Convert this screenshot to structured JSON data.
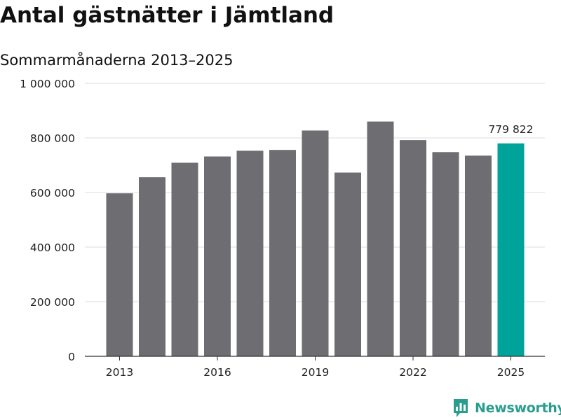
{
  "title": "Antal gästnätter i Jämtland",
  "subtitle": "Sommarmånaderna 2013–2025",
  "brand": {
    "name": "Newsworthy",
    "icon": "newsworthy-logo-icon",
    "color": "#2a9d8f"
  },
  "colors": {
    "bar": "#6e6d72",
    "highlight": "#00a39a",
    "grid": "#dddddd",
    "axis": "#333333"
  },
  "chart_data": {
    "type": "bar",
    "title": "Antal gästnätter i Jämtland",
    "subtitle": "Sommarmånaderna 2013–2025",
    "categories": [
      "2013",
      "2014",
      "2015",
      "2016",
      "2017",
      "2018",
      "2019",
      "2020",
      "2021",
      "2022",
      "2023",
      "2024",
      "2025"
    ],
    "values": [
      597000,
      656000,
      709000,
      732000,
      753000,
      756000,
      827000,
      673000,
      860000,
      792000,
      748000,
      735000,
      779822
    ],
    "highlight_index": 12,
    "data_labels": [
      {
        "index": 12,
        "text": "779 822"
      }
    ],
    "x_tick_labels": [
      "2013",
      "2016",
      "2019",
      "2022",
      "2025"
    ],
    "y_ticks": [
      0,
      200000,
      400000,
      600000,
      800000,
      1000000
    ],
    "y_tick_labels": [
      "0",
      "200 000",
      "400 000",
      "600 000",
      "800 000",
      "1 000 000"
    ],
    "ylim": [
      0,
      1000000
    ],
    "grid": true,
    "legend": "none"
  }
}
